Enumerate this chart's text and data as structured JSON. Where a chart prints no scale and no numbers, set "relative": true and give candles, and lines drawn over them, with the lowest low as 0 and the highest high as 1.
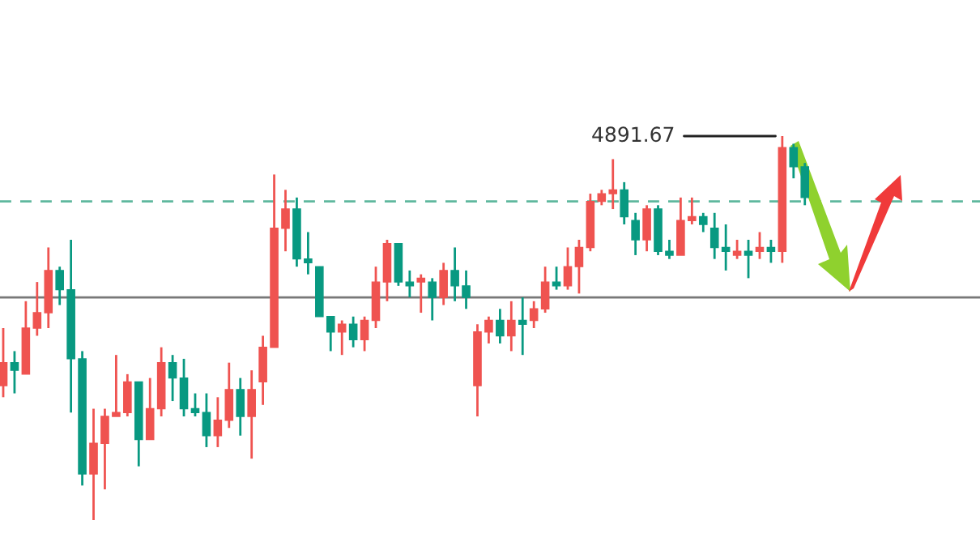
{
  "chart_data": {
    "type": "candlestick",
    "relative": true,
    "categories": [
      null,
      null,
      null,
      null,
      null,
      null,
      null,
      null,
      null,
      null,
      null,
      null,
      null,
      null,
      null,
      null,
      null,
      null,
      null,
      null,
      null,
      null,
      null,
      null,
      null,
      null,
      null,
      null,
      null,
      null,
      null,
      null,
      null,
      null,
      null,
      null,
      null,
      null,
      null,
      null,
      null,
      null,
      null,
      null,
      null,
      null,
      null,
      null,
      null,
      null,
      null,
      null,
      null,
      null,
      null,
      null,
      null,
      null,
      null,
      null,
      null,
      null,
      null,
      null,
      null,
      null,
      null,
      null,
      null,
      null,
      null,
      null
    ],
    "ohlc": [
      [
        0.35,
        0.5,
        0.32,
        0.41
      ],
      [
        0.41,
        0.44,
        0.33,
        0.39
      ],
      [
        0.38,
        0.57,
        0.38,
        0.5
      ],
      [
        0.5,
        0.62,
        0.48,
        0.54
      ],
      [
        0.54,
        0.71,
        0.5,
        0.65
      ],
      [
        0.65,
        0.66,
        0.56,
        0.6
      ],
      [
        0.6,
        0.73,
        0.28,
        0.42
      ],
      [
        0.42,
        0.44,
        0.09,
        0.12
      ],
      [
        0.12,
        0.29,
        0,
        0.2
      ],
      [
        0.2,
        0.29,
        0.08,
        0.27
      ],
      [
        0.27,
        0.43,
        0.27,
        0.28
      ],
      [
        0.28,
        0.38,
        0.27,
        0.36
      ],
      [
        0.36,
        0.36,
        0.14,
        0.21
      ],
      [
        0.21,
        0.37,
        0.21,
        0.29
      ],
      [
        0.29,
        0.45,
        0.27,
        0.41
      ],
      [
        0.41,
        0.43,
        0.31,
        0.37
      ],
      [
        0.37,
        0.42,
        0.27,
        0.29
      ],
      [
        0.29,
        0.33,
        0.27,
        0.28
      ],
      [
        0.28,
        0.33,
        0.19,
        0.22
      ],
      [
        0.22,
        0.32,
        0.19,
        0.26
      ],
      [
        0.26,
        0.41,
        0.24,
        0.34
      ],
      [
        0.34,
        0.37,
        0.22,
        0.27
      ],
      [
        0.27,
        0.39,
        0.16,
        0.34
      ],
      [
        0.36,
        0.48,
        0.3,
        0.45
      ],
      [
        0.45,
        0.9,
        0.45,
        0.76
      ],
      [
        0.76,
        0.86,
        0.7,
        0.81
      ],
      [
        0.81,
        0.84,
        0.66,
        0.68
      ],
      [
        0.68,
        0.75,
        0.64,
        0.67
      ],
      [
        0.66,
        0.66,
        0.53,
        0.53
      ],
      [
        0.53,
        0.53,
        0.44,
        0.49
      ],
      [
        0.49,
        0.52,
        0.43,
        0.51
      ],
      [
        0.51,
        0.53,
        0.45,
        0.47
      ],
      [
        0.47,
        0.53,
        0.44,
        0.52
      ],
      [
        0.52,
        0.66,
        0.5,
        0.62
      ],
      [
        0.62,
        0.73,
        0.57,
        0.72
      ],
      [
        0.72,
        0.72,
        0.61,
        0.62
      ],
      [
        0.62,
        0.65,
        0.58,
        0.61
      ],
      [
        0.62,
        0.64,
        0.54,
        0.63
      ],
      [
        0.62,
        0.63,
        0.52,
        0.58
      ],
      [
        0.58,
        0.67,
        0.56,
        0.65
      ],
      [
        0.65,
        0.71,
        0.57,
        0.61
      ],
      [
        0.61,
        0.65,
        0.55,
        0.58
      ],
      [
        0.35,
        0.51,
        0.27,
        0.49
      ],
      [
        0.49,
        0.53,
        0.46,
        0.52
      ],
      [
        0.52,
        0.55,
        0.46,
        0.48
      ],
      [
        0.48,
        0.57,
        0.44,
        0.52
      ],
      [
        0.52,
        0.58,
        0.43,
        0.51
      ],
      [
        0.52,
        0.57,
        0.5,
        0.55
      ],
      [
        0.55,
        0.66,
        0.54,
        0.62
      ],
      [
        0.62,
        0.66,
        0.6,
        0.61
      ],
      [
        0.61,
        0.71,
        0.6,
        0.66
      ],
      [
        0.66,
        0.73,
        0.59,
        0.71
      ],
      [
        0.71,
        0.85,
        0.7,
        0.83
      ],
      [
        0.83,
        0.86,
        0.82,
        0.85
      ],
      [
        0.85,
        0.94,
        0.81,
        0.86
      ],
      [
        0.86,
        0.88,
        0.77,
        0.79
      ],
      [
        0.78,
        0.8,
        0.69,
        0.73
      ],
      [
        0.73,
        0.82,
        0.7,
        0.81
      ],
      [
        0.81,
        0.82,
        0.69,
        0.7
      ],
      [
        0.7,
        0.73,
        0.68,
        0.69
      ],
      [
        0.69,
        0.84,
        0.69,
        0.78
      ],
      [
        0.78,
        0.84,
        0.77,
        0.79
      ],
      [
        0.79,
        0.8,
        0.75,
        0.77
      ],
      [
        0.76,
        0.8,
        0.68,
        0.71
      ],
      [
        0.71,
        0.77,
        0.65,
        0.7
      ],
      [
        0.69,
        0.73,
        0.68,
        0.7
      ],
      [
        0.7,
        0.73,
        0.63,
        0.69
      ],
      [
        0.7,
        0.75,
        0.68,
        0.71
      ],
      [
        0.71,
        0.73,
        0.67,
        0.7
      ],
      [
        0.7,
        1,
        0.67,
        0.97
      ],
      [
        0.97,
        0.98,
        0.89,
        0.92
      ],
      [
        0.92,
        0.93,
        0.82,
        0.84
      ]
    ],
    "colors": [
      "#ef5350",
      "#089981",
      "#ef5350",
      "#ef5350",
      "#ef5350",
      "#089981",
      "#089981",
      "#089981",
      "#ef5350",
      "#ef5350",
      "#ef5350",
      "#ef5350",
      "#089981",
      "#ef5350",
      "#ef5350",
      "#089981",
      "#089981",
      "#089981",
      "#089981",
      "#ef5350",
      "#ef5350",
      "#089981",
      "#ef5350",
      "#ef5350",
      "#ef5350",
      "#ef5350",
      "#089981",
      "#089981",
      "#089981",
      "#089981",
      "#ef5350",
      "#089981",
      "#ef5350",
      "#ef5350",
      "#ef5350",
      "#089981",
      "#089981",
      "#ef5350",
      "#089981",
      "#ef5350",
      "#089981",
      "#089981",
      "#ef5350",
      "#ef5350",
      "#089981",
      "#ef5350",
      "#089981",
      "#ef5350",
      "#ef5350",
      "#089981",
      "#ef5350",
      "#ef5350",
      "#ef5350",
      "#ef5350",
      "#ef5350",
      "#089981",
      "#089981",
      "#ef5350",
      "#089981",
      "#089981",
      "#ef5350",
      "#ef5350",
      "#089981",
      "#089981",
      "#089981",
      "#ef5350",
      "#089981",
      "#ef5350",
      "#089981",
      "#ef5350",
      "#089981",
      "#089981"
    ],
    "annotations": [
      "4891.67"
    ],
    "ref_lines": [
      {
        "axis": "y",
        "value": 0.83,
        "color": "#5fb89e",
        "line_style": "dashed"
      },
      {
        "axis": "y",
        "value": 0.58,
        "color": "#787878",
        "line_style": "solid"
      }
    ]
  }
}
